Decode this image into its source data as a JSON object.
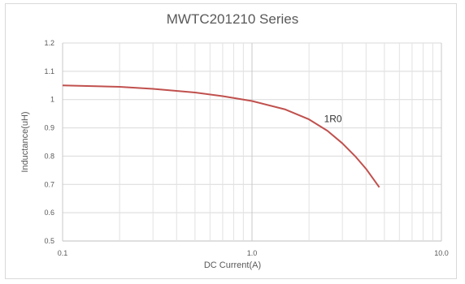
{
  "chart_data": {
    "type": "line",
    "title": "MWTC201210 Series",
    "xlabel": "DC Current(A)",
    "ylabel": "Inductance(uH)",
    "xscale": "log",
    "xlim": [
      0.1,
      10.0
    ],
    "ylim": [
      0.5,
      1.2
    ],
    "xticks": [
      "0.1",
      "1.0",
      "10.0"
    ],
    "yticks": [
      "0.5",
      "0.6",
      "0.7",
      "0.8",
      "0.9",
      "1",
      "1.1",
      "1.2"
    ],
    "grid": true,
    "series": [
      {
        "name": "1R0",
        "color": "#c0504d",
        "x": [
          0.1,
          0.2,
          0.3,
          0.5,
          0.7,
          1.0,
          1.5,
          2.0,
          2.5,
          3.0,
          3.5,
          4.0,
          4.7
        ],
        "y": [
          1.05,
          1.045,
          1.038,
          1.025,
          1.012,
          0.995,
          0.965,
          0.93,
          0.89,
          0.845,
          0.8,
          0.755,
          0.69
        ]
      }
    ]
  }
}
